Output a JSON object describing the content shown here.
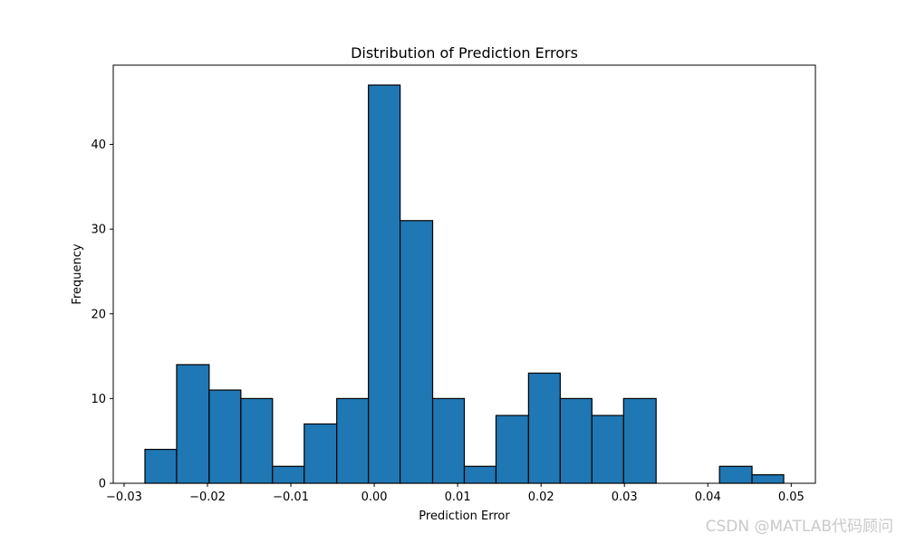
{
  "chart_data": {
    "type": "histogram",
    "title": "Distribution of Prediction Errors",
    "xlabel": "Prediction Error",
    "ylabel": "Frequency",
    "bins": [
      {
        "start": -0.0275,
        "end": -0.0237,
        "count": 4
      },
      {
        "start": -0.0237,
        "end": -0.0198,
        "count": 14
      },
      {
        "start": -0.0198,
        "end": -0.016,
        "count": 11
      },
      {
        "start": -0.016,
        "end": -0.0122,
        "count": 10
      },
      {
        "start": -0.0122,
        "end": -0.0084,
        "count": 2
      },
      {
        "start": -0.0084,
        "end": -0.0045,
        "count": 7
      },
      {
        "start": -0.0045,
        "end": -0.0007,
        "count": 10
      },
      {
        "start": -0.0007,
        "end": 0.0031,
        "count": 47
      },
      {
        "start": 0.0031,
        "end": 0.007,
        "count": 31
      },
      {
        "start": 0.007,
        "end": 0.0108,
        "count": 10
      },
      {
        "start": 0.0108,
        "end": 0.0146,
        "count": 2
      },
      {
        "start": 0.0146,
        "end": 0.0185,
        "count": 8
      },
      {
        "start": 0.0185,
        "end": 0.0223,
        "count": 13
      },
      {
        "start": 0.0223,
        "end": 0.0261,
        "count": 10
      },
      {
        "start": 0.0261,
        "end": 0.0299,
        "count": 8
      },
      {
        "start": 0.0299,
        "end": 0.0338,
        "count": 10
      },
      {
        "start": 0.0338,
        "end": 0.0376,
        "count": 0
      },
      {
        "start": 0.0376,
        "end": 0.0414,
        "count": 0
      },
      {
        "start": 0.0414,
        "end": 0.0453,
        "count": 2
      },
      {
        "start": 0.0453,
        "end": 0.0491,
        "count": 1
      }
    ],
    "xlim": [
      -0.0313,
      0.0529
    ],
    "ylim": [
      0,
      49.35
    ],
    "xticks": [
      -0.03,
      -0.02,
      -0.01,
      0.0,
      0.01,
      0.02,
      0.03,
      0.04,
      0.05
    ],
    "xtick_labels": [
      "−0.03",
      "−0.02",
      "−0.01",
      "0.00",
      "0.01",
      "0.02",
      "0.03",
      "0.04",
      "0.05"
    ],
    "yticks": [
      0,
      10,
      20,
      30,
      40
    ],
    "ytick_labels": [
      "0",
      "10",
      "20",
      "30",
      "40"
    ],
    "bar_color": "#1f77b4",
    "edge_color": "#000000",
    "grid": false,
    "legend": false
  },
  "watermark": "CSDN @MATLAB代码顾问"
}
